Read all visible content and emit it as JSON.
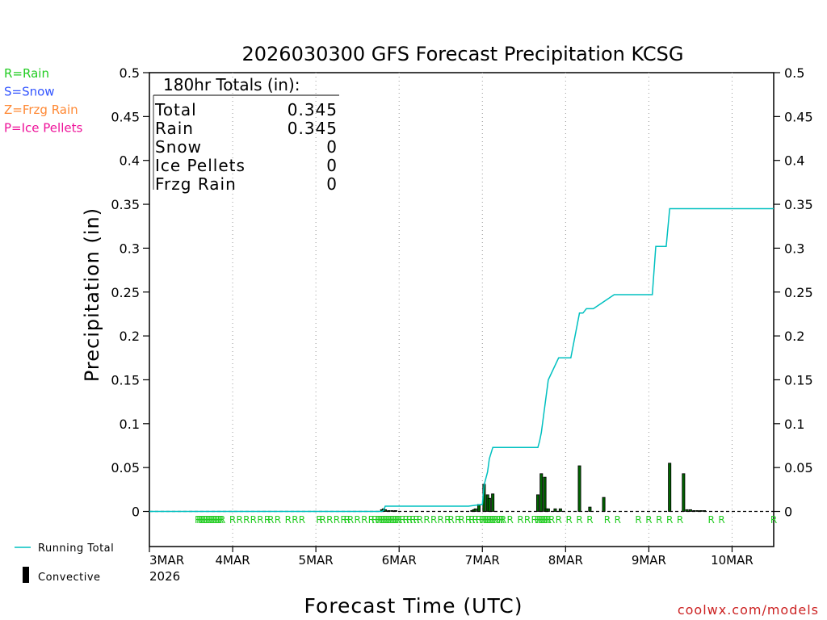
{
  "chart_data": {
    "type": "line",
    "title": "2026030300 GFS Forecast Precipitation KCSG",
    "xlabel": "Forecast Time (UTC)",
    "ylabel": "Precipitation (in)",
    "ylim": [
      -0.04,
      0.5
    ],
    "y_ticks": [
      {
        "value": 0,
        "label": "0"
      },
      {
        "value": 0.05,
        "label": "0.05"
      },
      {
        "value": 0.1,
        "label": "0.1"
      },
      {
        "value": 0.15,
        "label": "0.15"
      },
      {
        "value": 0.2,
        "label": "0.2"
      },
      {
        "value": 0.25,
        "label": "0.25"
      },
      {
        "value": 0.3,
        "label": "0.3"
      },
      {
        "value": 0.35,
        "label": "0.35"
      },
      {
        "value": 0.4,
        "label": "0.4"
      },
      {
        "value": 0.45,
        "label": "0.45"
      },
      {
        "value": 0.5,
        "label": "0.5"
      }
    ],
    "x_unit": "forecast hour",
    "xlim": [
      0,
      180
    ],
    "x_ticks": [
      {
        "hour": 0,
        "label": "3MAR",
        "sublabel": "2026"
      },
      {
        "hour": 24,
        "label": "4MAR"
      },
      {
        "hour": 48,
        "label": "5MAR"
      },
      {
        "hour": 72,
        "label": "6MAR"
      },
      {
        "hour": 96,
        "label": "7MAR"
      },
      {
        "hour": 120,
        "label": "8MAR"
      },
      {
        "hour": 144,
        "label": "9MAR"
      },
      {
        "hour": 168,
        "label": "10MAR"
      }
    ],
    "grid": "vertical dotted",
    "series": [
      {
        "name": "Running Total",
        "color": "#00c0c0",
        "type": "line",
        "x": [
          0,
          67,
          67.5,
          68,
          90,
          92,
          94,
          96,
          96.5,
          97.5,
          98,
          99,
          100,
          105,
          108,
          110,
          112,
          112.5,
          113,
          114,
          115,
          118,
          119,
          120,
          121,
          121.5,
          124,
          125,
          126,
          127,
          128,
          134,
          145,
          146,
          148,
          149,
          150,
          180
        ],
        "values": [
          0,
          0,
          0.001,
          0.006,
          0.006,
          0.006,
          0.007,
          0.008,
          0.03,
          0.045,
          0.06,
          0.073,
          0.073,
          0.073,
          0.073,
          0.073,
          0.073,
          0.08,
          0.09,
          0.12,
          0.15,
          0.175,
          0.175,
          0.175,
          0.175,
          0.175,
          0.226,
          0.226,
          0.231,
          0.231,
          0.231,
          0.247,
          0.247,
          0.302,
          0.302,
          0.302,
          0.345,
          0.345
        ]
      },
      {
        "name": "Convective",
        "color": "#000000",
        "fill": "#006400",
        "type": "bar",
        "x": [
          67,
          67.5,
          68,
          69,
          70,
          71,
          93,
          93.5,
          94,
          95,
          96.5,
          97.5,
          98,
          99,
          112,
          113,
          114,
          114.5,
          115,
          117,
          118.5,
          124,
          127,
          131,
          150,
          154,
          155,
          156,
          157,
          158,
          159,
          160
        ],
        "values": [
          0.002,
          0.003,
          0.002,
          0.001,
          0.001,
          0.001,
          0.001,
          0.002,
          0.003,
          0.008,
          0.031,
          0.019,
          0.015,
          0.02,
          0.019,
          0.043,
          0.039,
          0.003,
          0.003,
          0.003,
          0.003,
          0.052,
          0.005,
          0.016,
          0.055,
          0.043,
          0.002,
          0.002,
          0.001,
          0.001,
          0.001,
          0.001
        ]
      }
    ],
    "ptype_markers": {
      "row_label_letter": "R",
      "hours": [
        14,
        14.5,
        15,
        15.5,
        16,
        16.5,
        17,
        17.5,
        18,
        18.5,
        19,
        19.5,
        20,
        20.5,
        21,
        24,
        26,
        28,
        30,
        32,
        34,
        35,
        37,
        40,
        42,
        44,
        49,
        50,
        52,
        54,
        56,
        57,
        58,
        60,
        62,
        64,
        65,
        66,
        66.5,
        67,
        67.5,
        68,
        68.5,
        69,
        69.5,
        70,
        70.5,
        71,
        71.5,
        72,
        73,
        74,
        75,
        76,
        77,
        78,
        80,
        82,
        84,
        86,
        87,
        89,
        90,
        92,
        93,
        94,
        95,
        96,
        96.5,
        97,
        97.5,
        98,
        98.5,
        99,
        99.5,
        100,
        101,
        101.5,
        102,
        104,
        107,
        109,
        111,
        112,
        112.5,
        113,
        113.5,
        114,
        114.5,
        115,
        116,
        118,
        121,
        124,
        127,
        132,
        135,
        141,
        144,
        147,
        150,
        153,
        162,
        165,
        180
      ]
    },
    "legend": {
      "placement": "left",
      "ptype_entries": [
        {
          "text": "R=Rain",
          "color": "#22cc22"
        },
        {
          "text": "S=Snow",
          "color": "#3355ff"
        },
        {
          "text": "Z=Frzg Rain",
          "color": "#ff8833"
        },
        {
          "text": "P=Ice Pellets",
          "color": "#ee1199"
        }
      ],
      "series_entries": [
        {
          "text": "Running Total",
          "color": "#00c0c0"
        },
        {
          "text": "Convective",
          "color": "#000000"
        }
      ]
    },
    "totals": {
      "header": "180hr Totals (in):",
      "rows": [
        {
          "label": "Total",
          "value": "0.345"
        },
        {
          "label": "Rain",
          "value": "0.345"
        },
        {
          "label": "Snow",
          "value": "0"
        },
        {
          "label": "Ice Pellets",
          "value": "0"
        },
        {
          "label": "Frzg Rain",
          "value": "0"
        }
      ]
    },
    "credit": {
      "text": "coolwx.com/models",
      "color": "#cc2222"
    }
  }
}
